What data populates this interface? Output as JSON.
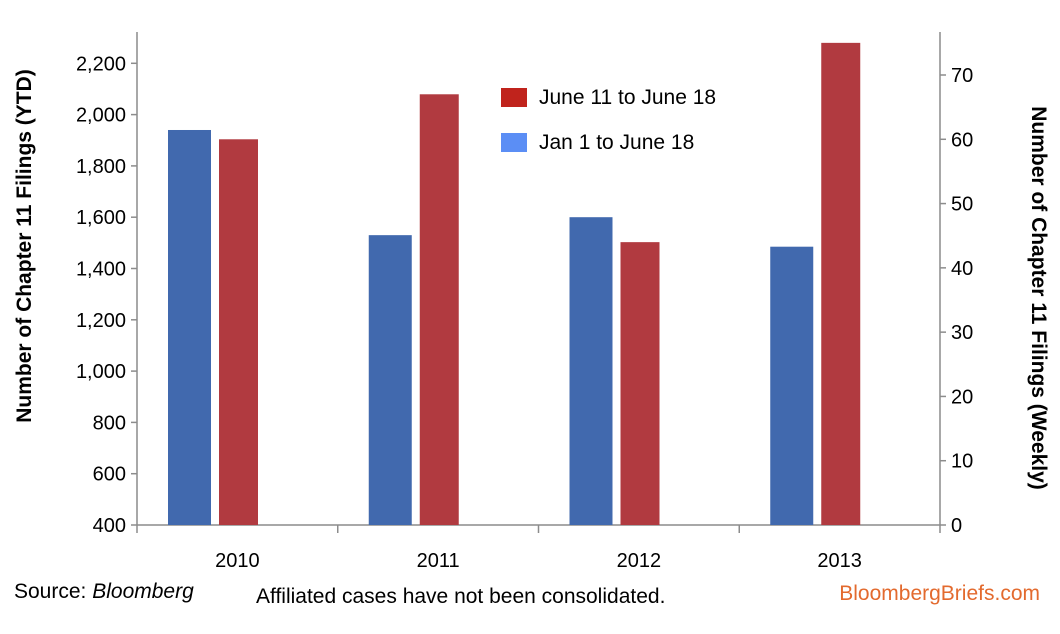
{
  "chart_data": {
    "type": "bar",
    "categories": [
      "2010",
      "2011",
      "2012",
      "2013"
    ],
    "series": [
      {
        "name": "Jan 1 to June 18",
        "axis": "left",
        "color": "#4169ae",
        "legend_color": "#5b8ef5",
        "values": [
          1940,
          1530,
          1600,
          1485
        ]
      },
      {
        "name": "June 11 to June 18",
        "axis": "right",
        "color": "#b13a40",
        "legend_color": "#c0231c",
        "values": [
          60,
          67,
          44,
          75
        ]
      }
    ],
    "ylabel": "Number of Chapter 11 Filings (YTD)",
    "ylabel_right": "Number of Chapter 11 Filings (Weekly)",
    "ylim": [
      400,
      2300
    ],
    "ylim_right": [
      0,
      76
    ],
    "yticks": [
      "400",
      "600",
      "800",
      "1,000",
      "1,200",
      "1,400",
      "1,600",
      "1,800",
      "2,000",
      "2,200"
    ],
    "yticks_values": [
      400,
      600,
      800,
      1000,
      1200,
      1400,
      1600,
      1800,
      2000,
      2200
    ],
    "yticks_right": [
      "0",
      "10",
      "20",
      "30",
      "40",
      "50",
      "60",
      "70"
    ],
    "yticks_right_values": [
      0,
      10,
      20,
      30,
      40,
      50,
      60,
      70
    ],
    "legend_order": [
      "June 11 to June 18",
      "Jan 1 to June 18"
    ],
    "legend_position": "top-center",
    "grid": false
  },
  "footer": {
    "source_label": "Source: ",
    "source_name": "Bloomberg",
    "note": "Affiliated cases have not been consolidated.",
    "brand": "BloombergBriefs.com",
    "brand_color": "#e36a2e"
  }
}
